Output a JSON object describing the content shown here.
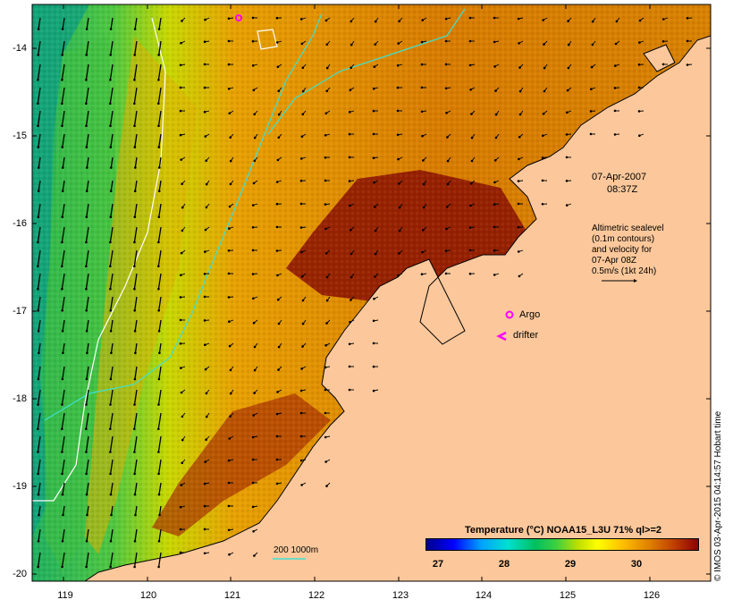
{
  "map": {
    "lon_ticks": [
      "119",
      "120",
      "121",
      "122",
      "123",
      "124",
      "125",
      "126"
    ],
    "lat_ticks": [
      "-14",
      "-15",
      "-16",
      "-17",
      "-18",
      "-19",
      "-20"
    ]
  },
  "annotations": {
    "date": "07-Apr-2007",
    "time": "08:37Z",
    "altimetry_line1": "Altimetric sealevel",
    "altimetry_line2": "(0.1m contours)",
    "altimetry_line3": "and velocity for",
    "altimetry_line4": "07-Apr 08Z",
    "altimetry_line5": "0.5m/s (1kt 24h)",
    "argo_label": "Argo",
    "drifter_label": "drifter",
    "depth_label": "200  1000m"
  },
  "colorbar": {
    "title": "Temperature (°C) NOAA15_L3U 71% ql>=2",
    "ticks": [
      "27",
      "28",
      "29",
      "30"
    ]
  },
  "credit": "© IMOS 03-Apr-2015 04:14:57 Hobart time",
  "colors": {
    "land": "#fcc89b",
    "argo": "#ff00ff",
    "drifter": "#ff00ff",
    "contour_200": "#40e0d0",
    "contour_1000": "#ffffff"
  }
}
